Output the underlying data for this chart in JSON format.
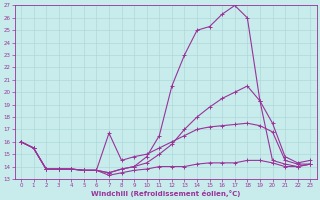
{
  "xlabel": "Windchill (Refroidissement éolien,°C)",
  "bg_color": "#c8ecec",
  "grid_color": "#b0d8d8",
  "line_color": "#993399",
  "xlim": [
    -0.5,
    23.5
  ],
  "ylim": [
    13,
    27
  ],
  "yticks": [
    13,
    14,
    15,
    16,
    17,
    18,
    19,
    20,
    21,
    22,
    23,
    24,
    25,
    26,
    27
  ],
  "xticks": [
    0,
    1,
    2,
    3,
    4,
    5,
    6,
    7,
    8,
    9,
    10,
    11,
    12,
    13,
    14,
    15,
    16,
    17,
    18,
    19,
    20,
    21,
    22,
    23
  ],
  "series": [
    {
      "x": [
        0,
        1,
        2,
        3,
        4,
        5,
        6,
        7,
        8,
        9,
        10,
        11,
        12,
        13,
        14,
        15,
        16,
        17,
        18,
        19,
        20,
        21,
        22,
        23
      ],
      "y": [
        16.0,
        15.5,
        13.8,
        13.8,
        13.8,
        13.7,
        13.7,
        13.5,
        13.8,
        14.0,
        14.8,
        16.5,
        20.5,
        23.0,
        25.0,
        25.3,
        26.3,
        27.0,
        26.0,
        19.3,
        14.5,
        14.2,
        14.0,
        14.2
      ]
    },
    {
      "x": [
        0,
        1,
        2,
        3,
        4,
        5,
        6,
        7,
        8,
        9,
        10,
        11,
        12,
        13,
        14,
        15,
        16,
        17,
        18,
        19,
        20,
        21,
        22,
        23
      ],
      "y": [
        16.0,
        15.5,
        13.8,
        13.8,
        13.8,
        13.7,
        13.7,
        13.5,
        13.8,
        14.0,
        14.3,
        15.0,
        15.8,
        17.0,
        18.0,
        18.8,
        19.5,
        20.0,
        20.5,
        19.3,
        17.5,
        14.8,
        14.3,
        14.5
      ]
    },
    {
      "x": [
        0,
        1,
        2,
        3,
        4,
        5,
        6,
        7,
        8,
        9,
        10,
        11,
        12,
        13,
        14,
        15,
        16,
        17,
        18,
        19,
        20,
        21,
        22,
        23
      ],
      "y": [
        16.0,
        15.5,
        13.8,
        13.8,
        13.8,
        13.7,
        13.7,
        16.7,
        14.5,
        14.8,
        15.0,
        15.5,
        16.0,
        16.5,
        17.0,
        17.2,
        17.3,
        17.4,
        17.5,
        17.3,
        16.8,
        14.5,
        14.2,
        14.2
      ]
    },
    {
      "x": [
        0,
        1,
        2,
        3,
        4,
        5,
        6,
        7,
        8,
        9,
        10,
        11,
        12,
        13,
        14,
        15,
        16,
        17,
        18,
        19,
        20,
        21,
        22,
        23
      ],
      "y": [
        16.0,
        15.5,
        13.8,
        13.8,
        13.8,
        13.7,
        13.7,
        13.3,
        13.5,
        13.7,
        13.8,
        14.0,
        14.0,
        14.0,
        14.2,
        14.3,
        14.3,
        14.3,
        14.5,
        14.5,
        14.3,
        14.0,
        14.0,
        14.2
      ]
    }
  ]
}
